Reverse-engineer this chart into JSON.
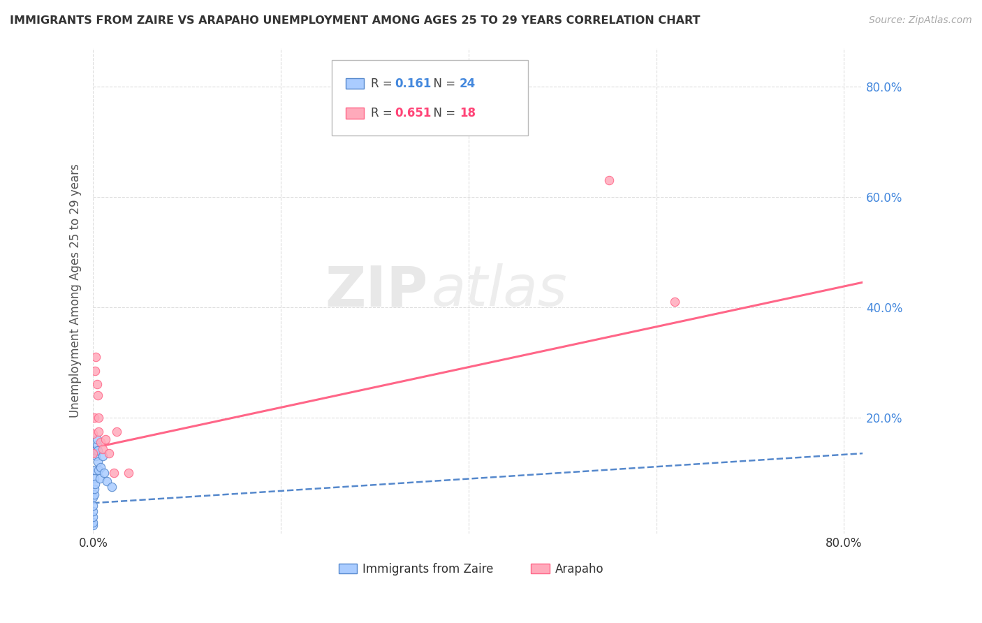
{
  "title": "IMMIGRANTS FROM ZAIRE VS ARAPAHO UNEMPLOYMENT AMONG AGES 25 TO 29 YEARS CORRELATION CHART",
  "source": "Source: ZipAtlas.com",
  "ylabel": "Unemployment Among Ages 25 to 29 years",
  "xlim": [
    0.0,
    0.82
  ],
  "ylim": [
    -0.01,
    0.87
  ],
  "xtick_values": [
    0.0,
    0.2,
    0.4,
    0.6,
    0.8
  ],
  "xtick_labels": [
    "0.0%",
    "",
    "",
    "",
    "80.0%"
  ],
  "ytick_values": [
    0.2,
    0.4,
    0.6,
    0.8
  ],
  "ytick_labels": [
    "20.0%",
    "40.0%",
    "60.0%",
    "80.0%"
  ],
  "watermark_zip": "ZIP",
  "watermark_atlas": "atlas",
  "background_color": "#ffffff",
  "grid_color": "#dddddd",
  "zaire_scatter_x": [
    0.0,
    0.0,
    0.0,
    0.0,
    0.0,
    0.0,
    0.001,
    0.001,
    0.001,
    0.002,
    0.002,
    0.003,
    0.003,
    0.004,
    0.004,
    0.005,
    0.005,
    0.006,
    0.007,
    0.008,
    0.01,
    0.012,
    0.015,
    0.02
  ],
  "zaire_scatter_y": [
    0.005,
    0.01,
    0.02,
    0.03,
    0.04,
    0.055,
    0.06,
    0.07,
    0.09,
    0.08,
    0.105,
    0.13,
    0.14,
    0.15,
    0.16,
    0.14,
    0.12,
    0.105,
    0.09,
    0.11,
    0.13,
    0.1,
    0.085,
    0.075
  ],
  "arapaho_scatter_x": [
    0.0,
    0.0,
    0.001,
    0.002,
    0.003,
    0.004,
    0.005,
    0.006,
    0.006,
    0.008,
    0.01,
    0.013,
    0.017,
    0.022,
    0.025,
    0.038,
    0.55,
    0.62
  ],
  "arapaho_scatter_y": [
    0.17,
    0.135,
    0.2,
    0.285,
    0.31,
    0.26,
    0.24,
    0.2,
    0.175,
    0.155,
    0.143,
    0.16,
    0.135,
    0.1,
    0.175,
    0.1,
    0.63,
    0.41
  ],
  "zaire_line_x": [
    0.0,
    0.82
  ],
  "zaire_line_y": [
    0.045,
    0.135
  ],
  "arapaho_line_x": [
    0.0,
    0.82
  ],
  "arapaho_line_y": [
    0.145,
    0.445
  ],
  "scatter_color_zaire": "#aaccff",
  "scatter_color_arapaho": "#ffaabb",
  "line_color_zaire": "#5588cc",
  "line_color_arapaho": "#ff6688",
  "r_color_zaire": "#4488dd",
  "r_color_arapaho": "#ff4477",
  "legend_r1": "0.161",
  "legend_n1": "24",
  "legend_r2": "0.651",
  "legend_n2": "18"
}
